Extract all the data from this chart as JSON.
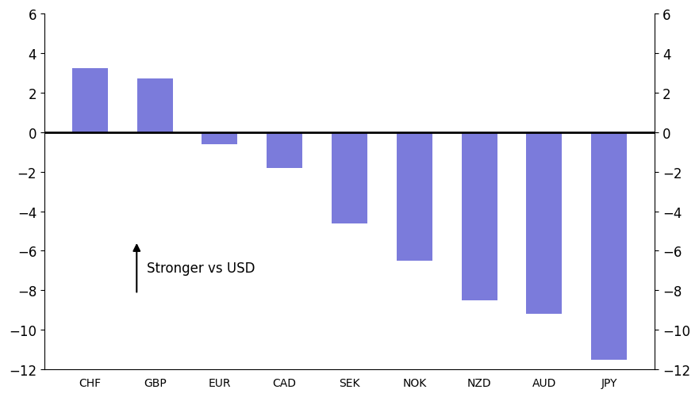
{
  "categories": [
    "CHF",
    "GBP",
    "EUR",
    "CAD",
    "SEK",
    "NOK",
    "NZD",
    "AUD",
    "JPY"
  ],
  "values": [
    3.25,
    2.7,
    -0.6,
    -1.8,
    -4.6,
    -6.5,
    -8.5,
    -9.2,
    -11.5
  ],
  "bar_color": "#7b7bdb",
  "ylim": [
    -12,
    6
  ],
  "yticks": [
    -12,
    -10,
    -8,
    -6,
    -4,
    -2,
    0,
    2,
    4,
    6
  ],
  "annotation_text": "Stronger vs USD",
  "background_color": "#ffffff",
  "tick_fontsize": 12,
  "annotation_fontsize": 12,
  "bar_width": 0.55
}
